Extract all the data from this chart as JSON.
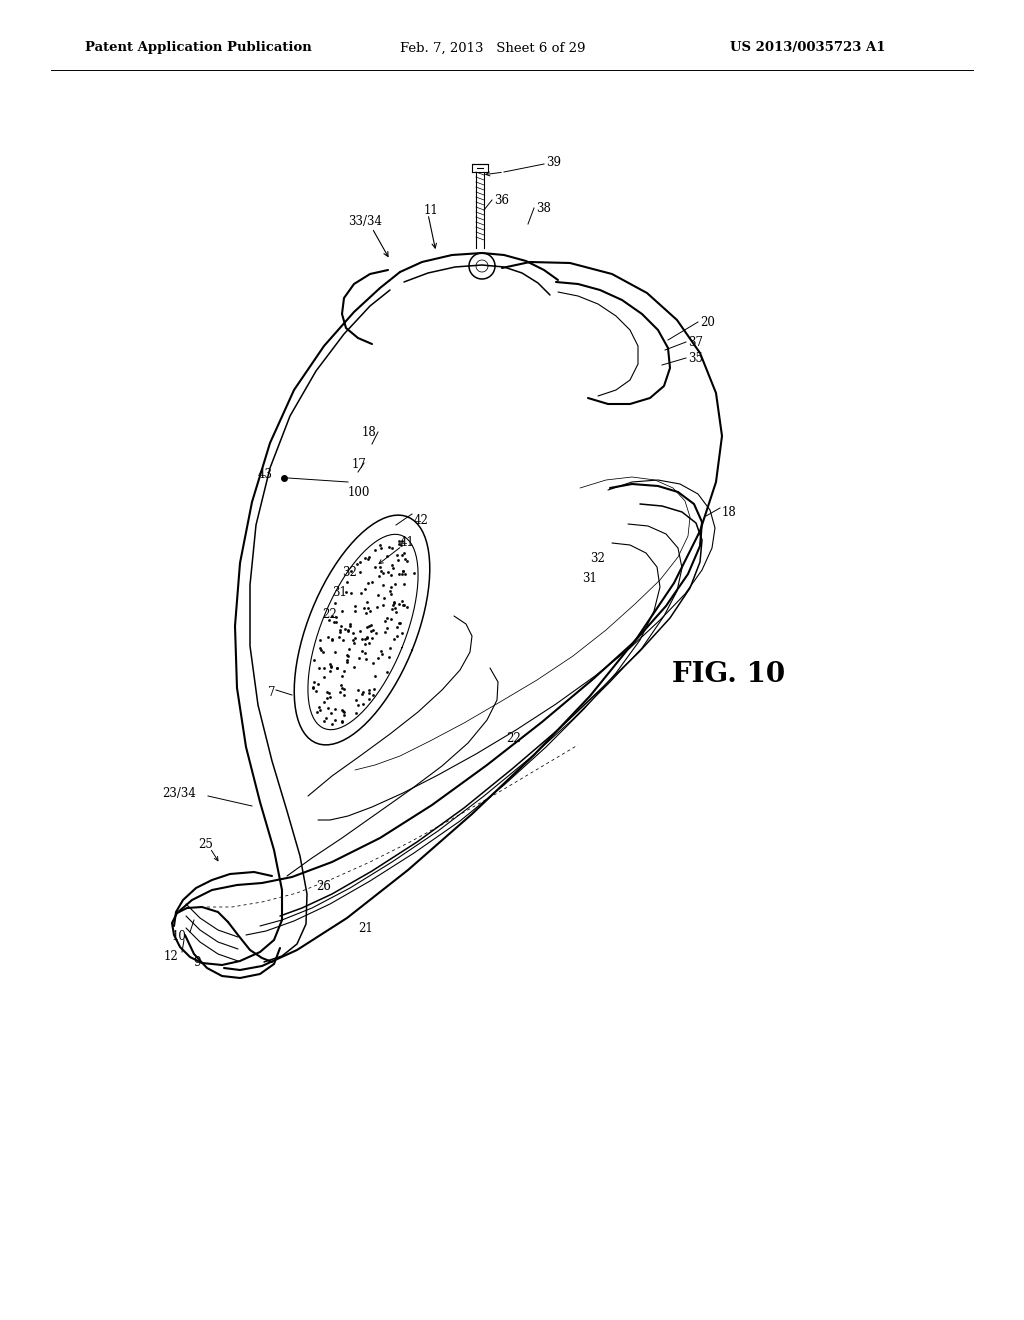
{
  "background_color": "#ffffff",
  "header_left": "Patent Application Publication",
  "header_mid": "Feb. 7, 2013   Sheet 6 of 29",
  "header_right": "US 2013/0035723 A1",
  "fig_label": "FIG. 10",
  "header_fontsize": 9.5,
  "fig_fontsize": 20,
  "label_fontsize": 8.5
}
